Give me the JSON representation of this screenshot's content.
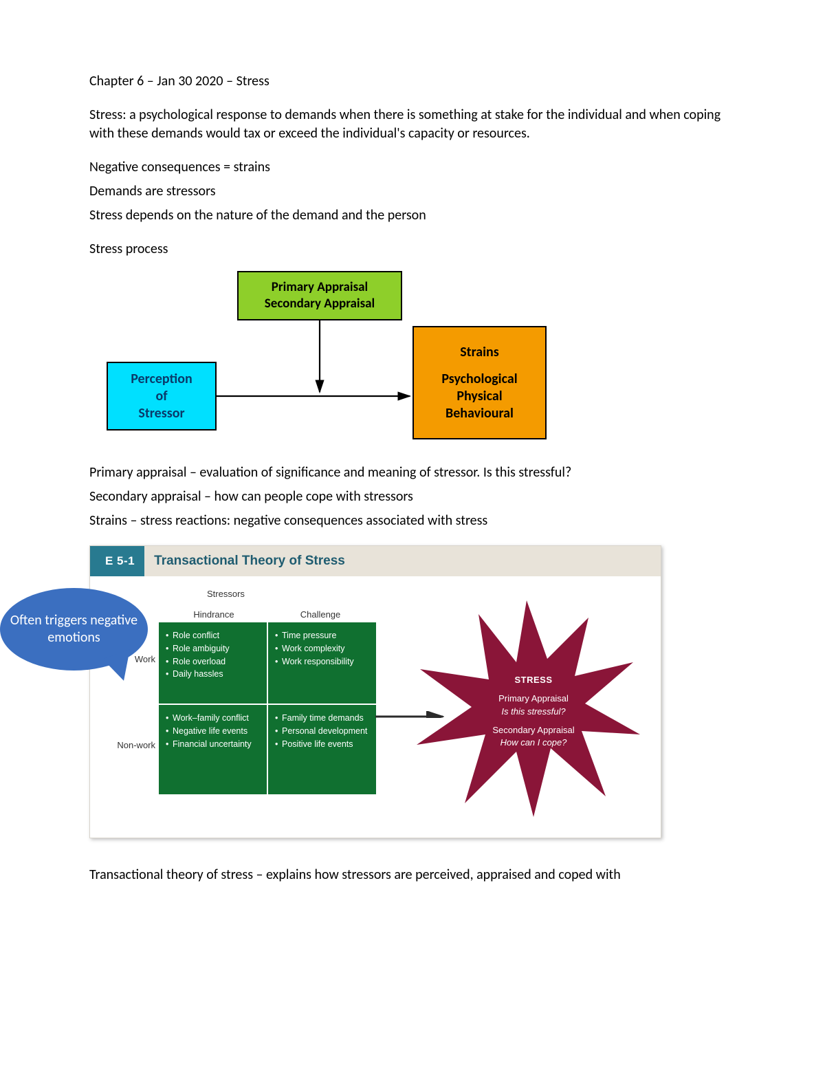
{
  "colors": {
    "text": "#000000",
    "cyan": "#00e0ff",
    "cyan_text": "#0a3a6a",
    "green": "#8ecf2a",
    "orange": "#f49b00",
    "callout": "#3b6fc0",
    "header_bg": "#e8e3d9",
    "tab_bg": "#287a90",
    "title_text": "#1f5c70",
    "matrix_cell": "#107030",
    "burst": "#8a1538",
    "arrow": "#2a2a2a"
  },
  "heading": "Chapter 6 – Jan 30 2020 – Stress",
  "definition": "Stress: a psychological response to demands when there is something at stake for the individual and when coping with these demands would tax or exceed the individual's capacity or resources.",
  "bullets1": [
    "Negative consequences = strains",
    "Demands are stressors",
    "Stress depends on the nature of the demand and the person"
  ],
  "process_label": "Stress process",
  "diagram1": {
    "perception": [
      "Perception",
      "of",
      "Stressor"
    ],
    "appraisal": [
      "Primary Appraisal",
      "Secondary Appraisal"
    ],
    "strains_title": "Strains",
    "strains_lines": [
      "Psychological",
      "Physical",
      "Behavioural"
    ]
  },
  "after_diagram": [
    "Primary appraisal – evaluation of significance and meaning of stressor. Is this stressful?",
    "Secondary appraisal – how can people cope with stressors",
    "Strains – stress reactions: negative consequences associated with stress"
  ],
  "callout": "Often triggers negative emotions",
  "figure": {
    "tab": "E 5-1",
    "title": "Transactional Theory of Stress",
    "super_header": "Stressors",
    "col_headers": [
      "Hindrance",
      "Challenge"
    ],
    "row_labels": [
      "Work",
      "Non-work"
    ],
    "cells": {
      "work_hindrance": [
        "Role conflict",
        "Role ambiguity",
        "Role overload",
        "Daily hassles"
      ],
      "work_challenge": [
        "Time pressure",
        "Work complexity",
        "Work responsibility"
      ],
      "non_hindrance": [
        "Work–family conflict",
        "Negative life events",
        "Financial uncertainty"
      ],
      "non_challenge": [
        "Family time demands",
        "Personal development",
        "Positive life events"
      ]
    },
    "burst": {
      "title": "STRESS",
      "p1": "Primary Appraisal",
      "p1q": "Is this stressful?",
      "p2": "Secondary Appraisal",
      "p2q": "How can I cope?"
    }
  },
  "closing": "Transactional theory of stress – explains how stressors are perceived, appraised and coped with"
}
